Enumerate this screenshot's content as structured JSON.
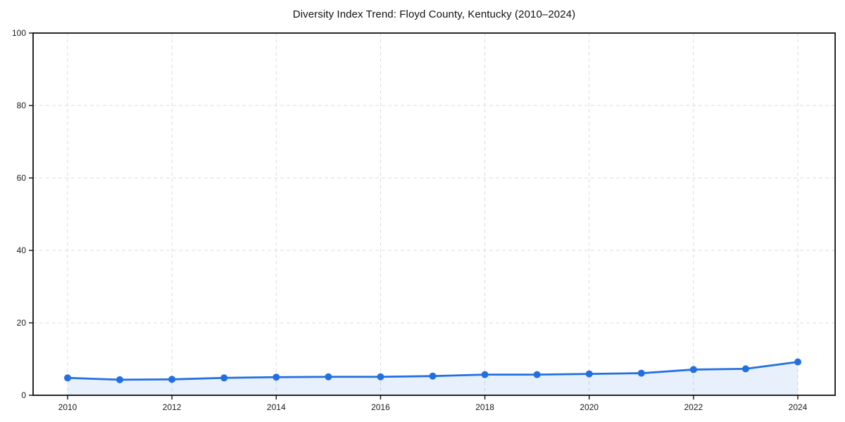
{
  "chart_data": {
    "type": "area",
    "title": "Diversity Index Trend: Floyd County, Kentucky (2010–2024)",
    "x": [
      2010,
      2011,
      2012,
      2013,
      2014,
      2015,
      2016,
      2017,
      2018,
      2019,
      2020,
      2021,
      2022,
      2023,
      2024
    ],
    "values": [
      4.8,
      4.3,
      4.4,
      4.8,
      5.0,
      5.1,
      5.1,
      5.3,
      5.7,
      5.7,
      5.9,
      6.1,
      7.1,
      7.3,
      9.2
    ],
    "xlabel": "",
    "ylabel": "",
    "xlim": [
      2010,
      2024
    ],
    "ylim": [
      0,
      100
    ],
    "yticks": [
      0,
      20,
      40,
      60,
      80,
      100
    ],
    "xticks": [
      2010,
      2012,
      2014,
      2016,
      2018,
      2020,
      2022,
      2024
    ],
    "grid": true,
    "legend_position": "none",
    "colors": {
      "line": "#2270e0",
      "marker": "#2270e0",
      "fill": "#2270e0",
      "fill_opacity": 0.1,
      "grid": "#dcdcdc",
      "axis": "#111111",
      "tick_text": "#1a1a1a",
      "background": "#ffffff"
    }
  }
}
